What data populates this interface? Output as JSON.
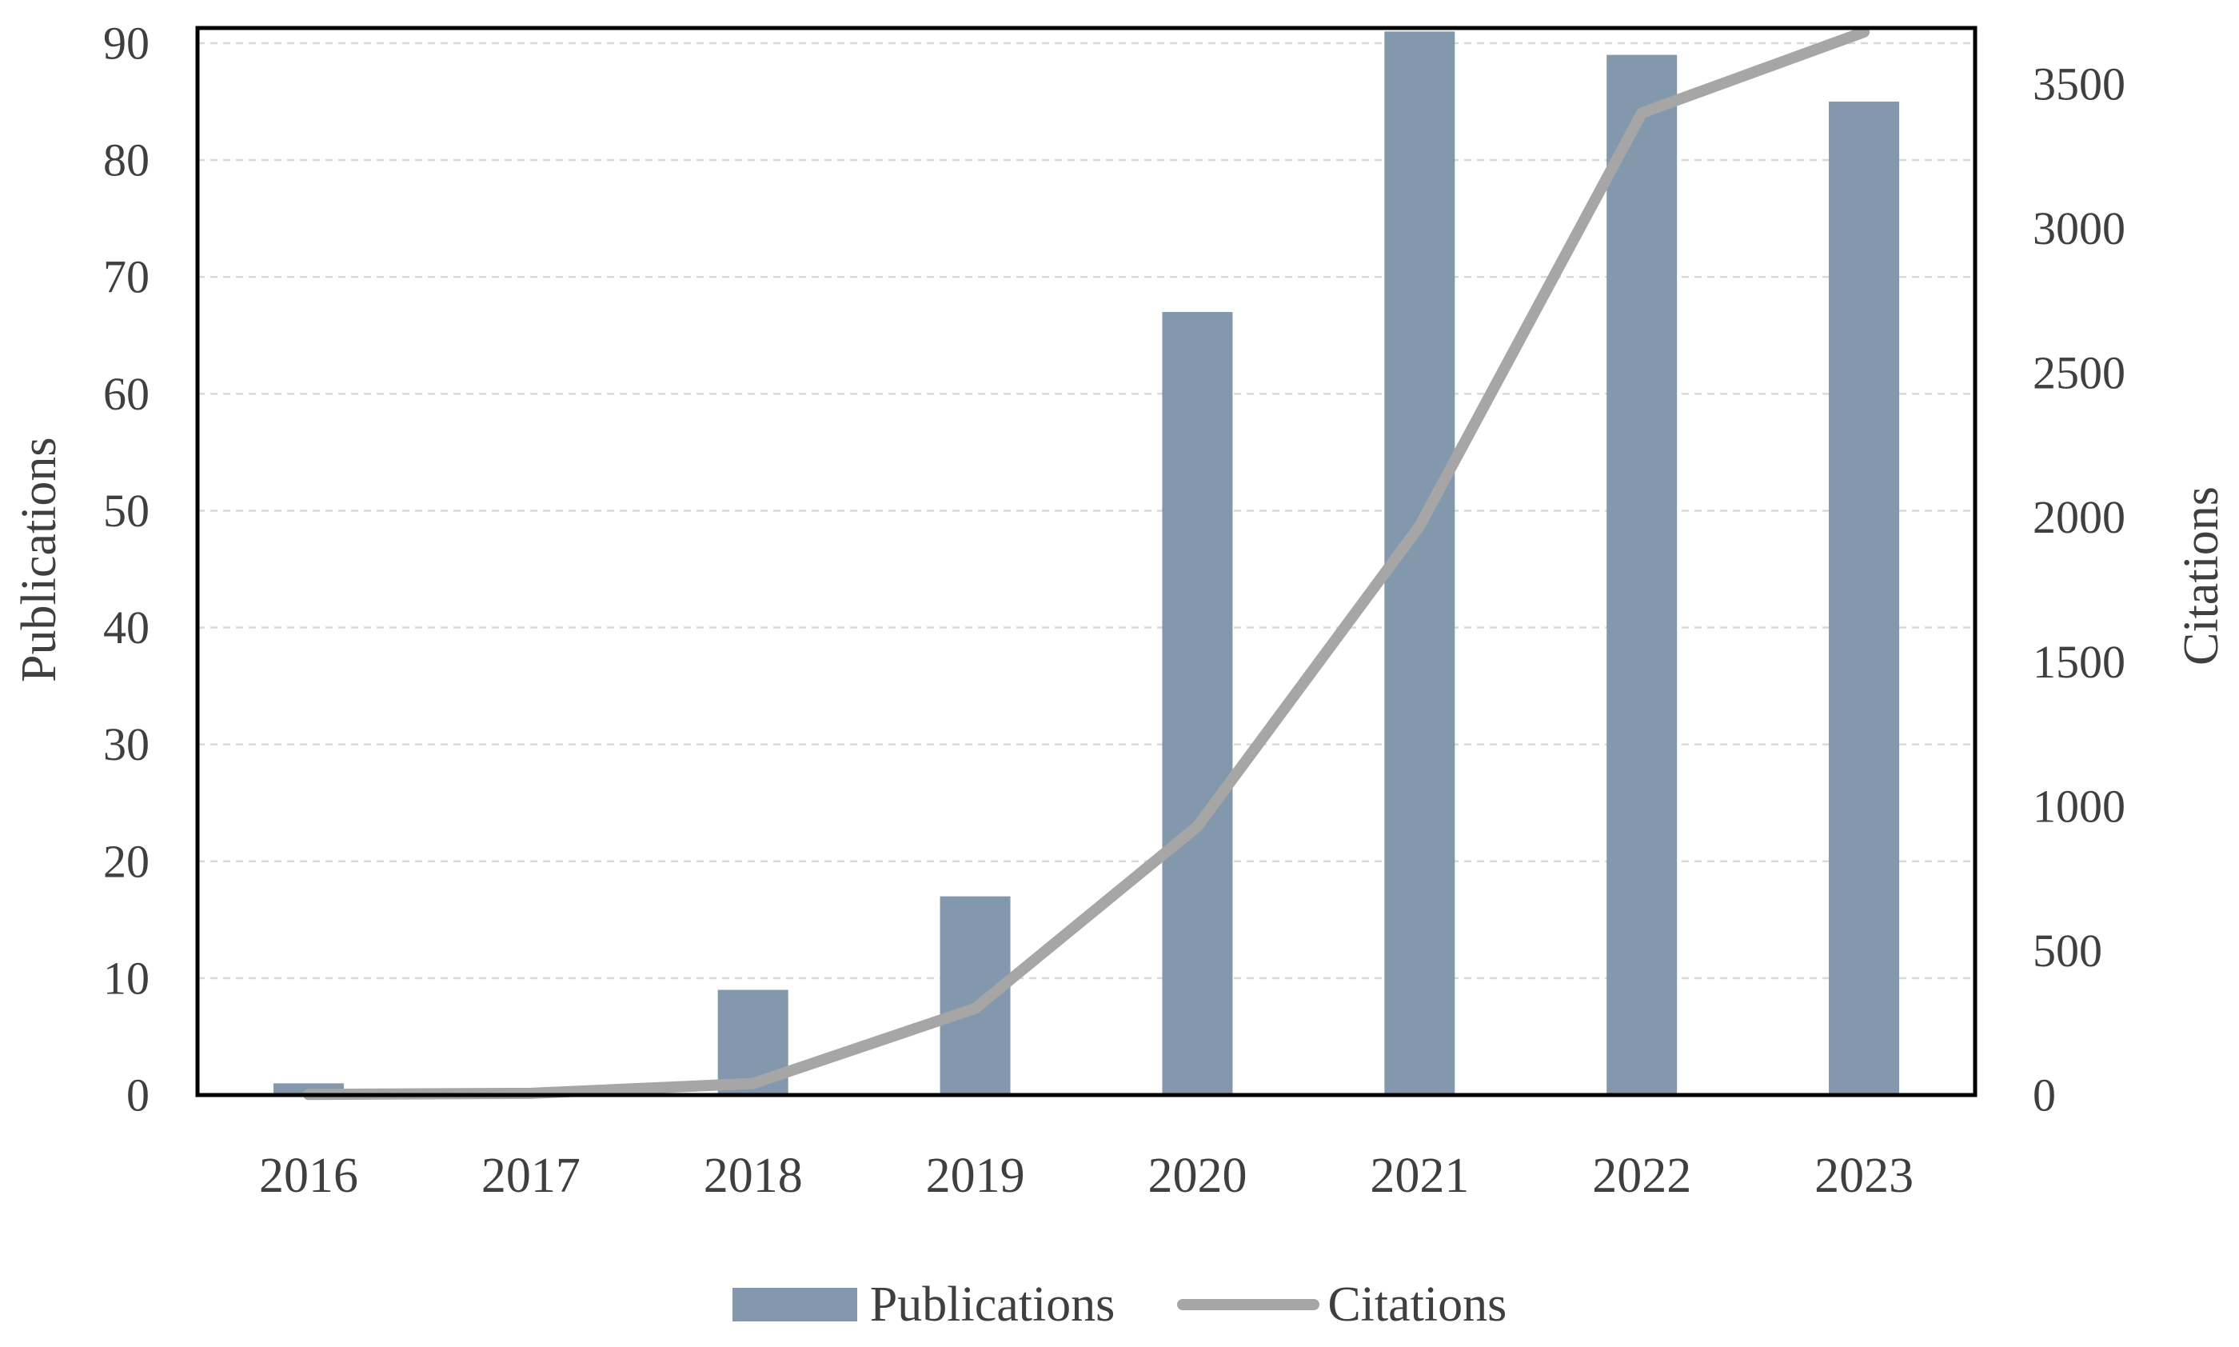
{
  "figure": {
    "background": "#ffffff",
    "text_color": "#3f3f3f",
    "gridline_color": "#d9d9d9",
    "plot_border_color": "#000000"
  },
  "axes": {
    "left_title": "Publications",
    "right_title": "Citations"
  },
  "legend": {
    "position": "bottom",
    "publications_label": "Publications",
    "citations_label": "Citations"
  },
  "chart_data": {
    "type": "bar",
    "subtype": "combo-bar-line-dual-axis",
    "title": "",
    "categories": [
      "2016",
      "2017",
      "2018",
      "2019",
      "2020",
      "2021",
      "2022",
      "2023"
    ],
    "series": [
      {
        "name": "Publications",
        "type": "bar",
        "axis": "left",
        "color": "#8398ad",
        "values": [
          1,
          0,
          9,
          17,
          67,
          91,
          89,
          85
        ]
      },
      {
        "name": "Citations",
        "type": "line",
        "axis": "right",
        "color": "#a6a6a6",
        "values": [
          2,
          6,
          40,
          300,
          930,
          1970,
          3400,
          3680
        ]
      }
    ],
    "left_axis": {
      "title": "Publications",
      "ticks": [
        0,
        10,
        20,
        30,
        40,
        50,
        60,
        70,
        80,
        90
      ],
      "range": [
        0,
        91.3
      ]
    },
    "right_axis": {
      "title": "Citations",
      "ticks": [
        0,
        500,
        1000,
        1500,
        2000,
        2500,
        3000,
        3500
      ],
      "range": [
        0,
        3694
      ]
    },
    "grid": "horizontal-dashed",
    "legend_position": "bottom"
  }
}
